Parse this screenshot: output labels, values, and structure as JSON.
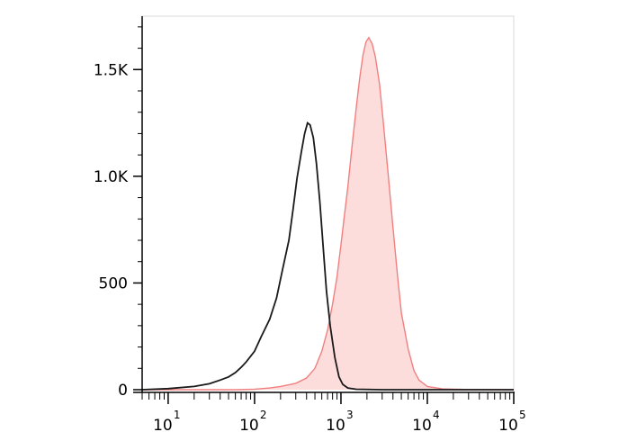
{
  "chart_data": {
    "type": "area",
    "x_scale": "log",
    "xlim": [
      5,
      100000
    ],
    "ylim": [
      0,
      1750
    ],
    "grid": false,
    "legend": "none",
    "x_ticks": [
      {
        "base": "10",
        "exp": "1",
        "value": 10
      },
      {
        "base": "10",
        "exp": "2",
        "value": 100
      },
      {
        "base": "10",
        "exp": "3",
        "value": 1000
      },
      {
        "base": "10",
        "exp": "4",
        "value": 10000
      },
      {
        "base": "10",
        "exp": "5",
        "value": 100000
      }
    ],
    "y_ticks": [
      {
        "label": "0",
        "value": 0
      },
      {
        "label": "500",
        "value": 500
      },
      {
        "label": "1.0K",
        "value": 1000
      },
      {
        "label": "1.5K",
        "value": 1500
      }
    ],
    "series": [
      {
        "style": "line",
        "color": "#1a1a1a",
        "points": [
          [
            5,
            0
          ],
          [
            10,
            5
          ],
          [
            20,
            15
          ],
          [
            30,
            28
          ],
          [
            40,
            45
          ],
          [
            50,
            60
          ],
          [
            60,
            80
          ],
          [
            70,
            105
          ],
          [
            80,
            130
          ],
          [
            100,
            180
          ],
          [
            120,
            250
          ],
          [
            150,
            330
          ],
          [
            180,
            430
          ],
          [
            210,
            560
          ],
          [
            250,
            700
          ],
          [
            280,
            850
          ],
          [
            310,
            990
          ],
          [
            350,
            1120
          ],
          [
            380,
            1200
          ],
          [
            410,
            1250
          ],
          [
            440,
            1240
          ],
          [
            480,
            1180
          ],
          [
            520,
            1060
          ],
          [
            570,
            880
          ],
          [
            620,
            680
          ],
          [
            680,
            460
          ],
          [
            750,
            300
          ],
          [
            850,
            150
          ],
          [
            950,
            60
          ],
          [
            1050,
            25
          ],
          [
            1200,
            8
          ],
          [
            1500,
            2
          ],
          [
            3000,
            0
          ],
          [
            100000,
            0
          ]
        ]
      },
      {
        "style": "filled",
        "color": "#f08080",
        "fill": "#fddcdc",
        "points": [
          [
            5,
            0
          ],
          [
            60,
            0
          ],
          [
            100,
            2
          ],
          [
            150,
            8
          ],
          [
            200,
            15
          ],
          [
            300,
            30
          ],
          [
            400,
            55
          ],
          [
            500,
            100
          ],
          [
            600,
            180
          ],
          [
            700,
            280
          ],
          [
            800,
            400
          ],
          [
            900,
            530
          ],
          [
            1000,
            680
          ],
          [
            1100,
            820
          ],
          [
            1200,
            950
          ],
          [
            1350,
            1150
          ],
          [
            1500,
            1320
          ],
          [
            1650,
            1460
          ],
          [
            1800,
            1570
          ],
          [
            1950,
            1630
          ],
          [
            2100,
            1650
          ],
          [
            2300,
            1620
          ],
          [
            2500,
            1560
          ],
          [
            2800,
            1430
          ],
          [
            3100,
            1250
          ],
          [
            3500,
            1020
          ],
          [
            4000,
            760
          ],
          [
            4500,
            540
          ],
          [
            5000,
            360
          ],
          [
            6000,
            190
          ],
          [
            7000,
            90
          ],
          [
            8000,
            45
          ],
          [
            10000,
            15
          ],
          [
            15000,
            4
          ],
          [
            30000,
            1
          ],
          [
            100000,
            0
          ]
        ]
      }
    ]
  }
}
